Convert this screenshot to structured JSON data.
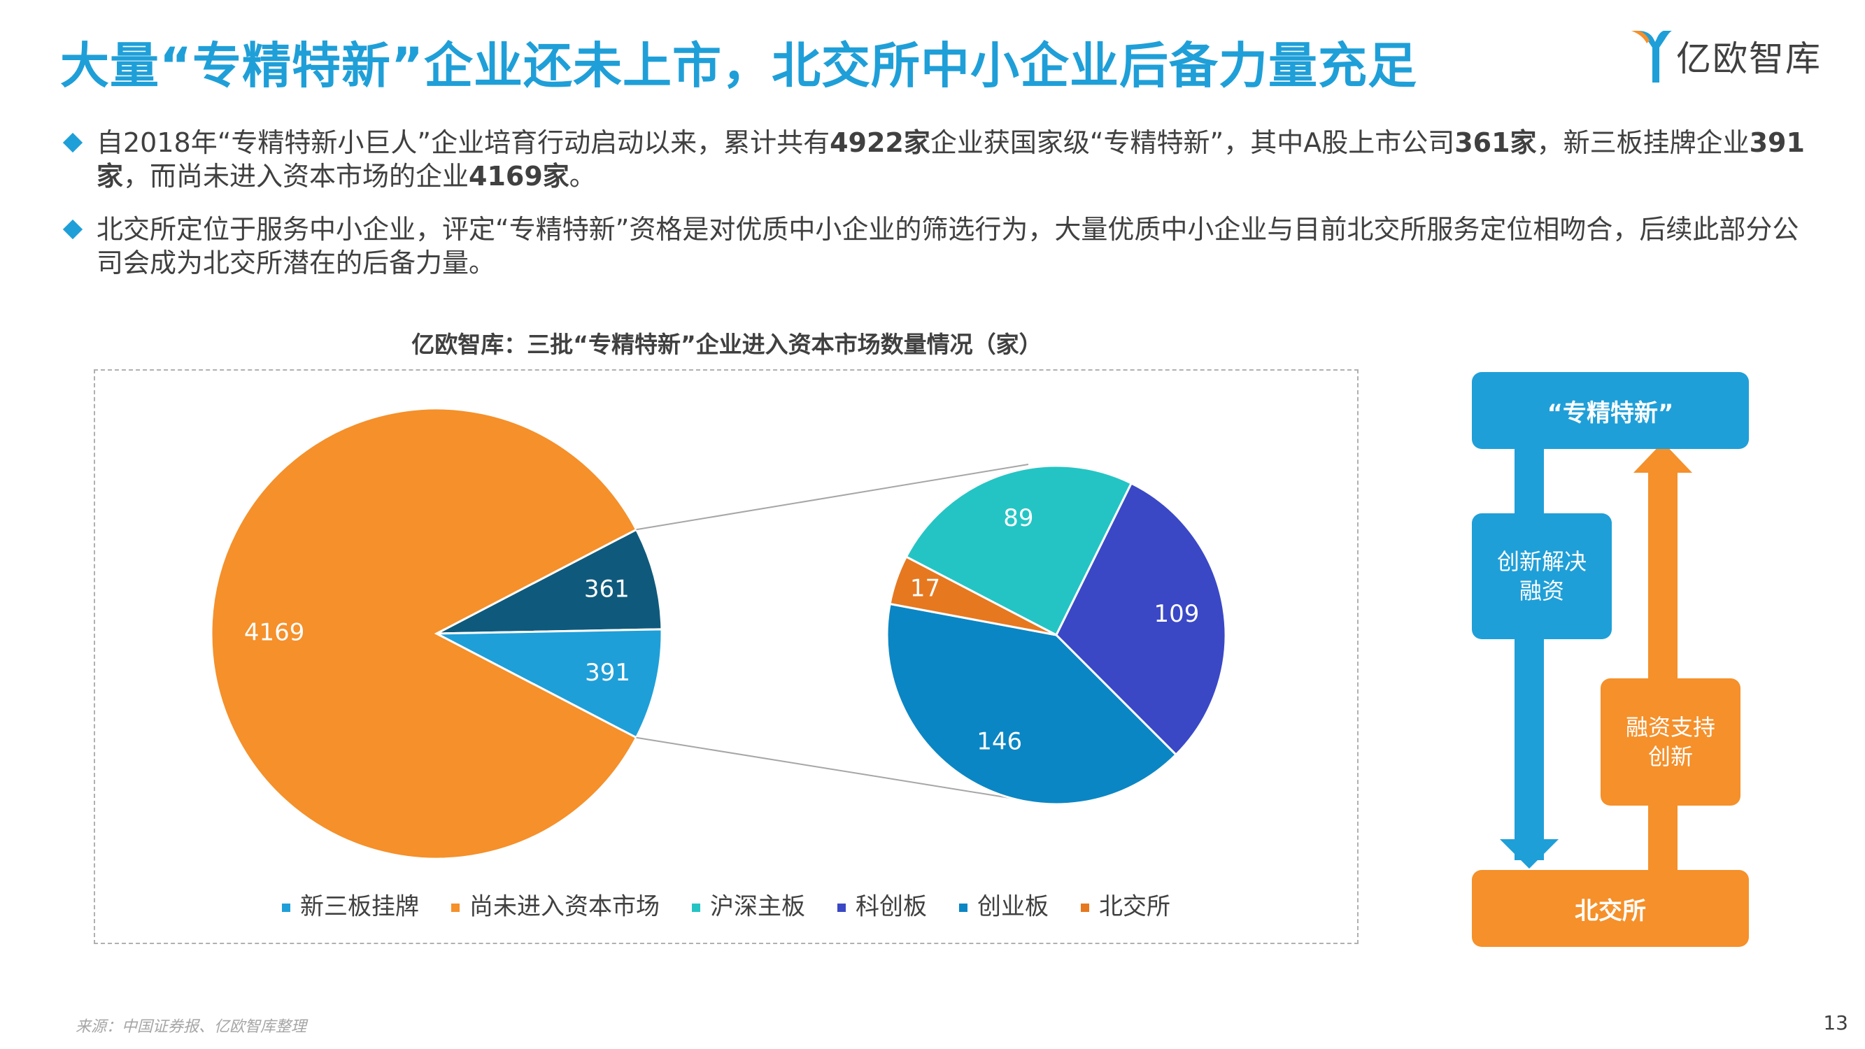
{
  "header": {
    "title": "大量“专精特新”企业还未上市，北交所中小企业后备力量充足",
    "logo_text": "亿欧智库"
  },
  "bullets": [
    {
      "parts": [
        {
          "text": "自2018年“专精特新小巨人”企业培育行动启动以来，累计共有",
          "bold": false
        },
        {
          "text": "4922家",
          "bold": true
        },
        {
          "text": "企业获国家级“专精特新”，其中A股上市公司",
          "bold": false
        },
        {
          "text": "361家",
          "bold": true
        },
        {
          "text": "，新三板挂牌企业",
          "bold": false
        },
        {
          "text": "391家",
          "bold": true
        },
        {
          "text": "，而尚未进入资本市场的企业",
          "bold": false
        },
        {
          "text": "4169家",
          "bold": true
        },
        {
          "text": "。",
          "bold": false
        }
      ]
    },
    {
      "parts": [
        {
          "text": "北交所定位于服务中小企业，评定“专精特新”资格是对优质中小企业的筛选行为，大量优质中小企业与目前北交所服务定位相吻合，后续此部分公司会成为北交所潜在的后备力量。",
          "bold": false
        }
      ]
    }
  ],
  "chart_data": {
    "type": "pie",
    "title": "亿欧智库：三批“专精特新”企业进入资本市场数量情况（家）",
    "main_pie": [
      {
        "name": "尚未进入资本市场",
        "value": 4169,
        "color": "#f5902a"
      },
      {
        "name": "",
        "value": 361,
        "color": "#0f5a7c"
      },
      {
        "name": "新三板挂牌",
        "value": 391,
        "color": "#1f9fd8"
      }
    ],
    "sub_pie": [
      {
        "name": "创业板",
        "value": 146,
        "color": "#0b86c4"
      },
      {
        "name": "北交所",
        "value": 17,
        "color": "#e67820"
      },
      {
        "name": "沪深主板",
        "value": 89,
        "color": "#24c4c4"
      },
      {
        "name": "科创板",
        "value": 109,
        "color": "#3a48c6"
      }
    ],
    "legend": [
      {
        "name": "新三板挂牌",
        "color": "#1f9fd8"
      },
      {
        "name": "尚未进入资本市场",
        "color": "#f5902a"
      },
      {
        "name": "沪深主板",
        "color": "#24c4c4"
      },
      {
        "name": "科创板",
        "color": "#3a48c6"
      },
      {
        "name": "创业板",
        "color": "#0b86c4"
      },
      {
        "name": "北交所",
        "color": "#e67820"
      }
    ],
    "legend_position": "bottom"
  },
  "flow": {
    "top_label": "“专精特新”",
    "bottom_label": "北交所",
    "left_label": "创新解决\n融资",
    "right_label": "融资支持\n创新",
    "blue": "#1f9fd8",
    "orange": "#f5902a"
  },
  "footer": {
    "source": "来源：中国证券报、亿欧智库整理",
    "page_number": "13"
  }
}
